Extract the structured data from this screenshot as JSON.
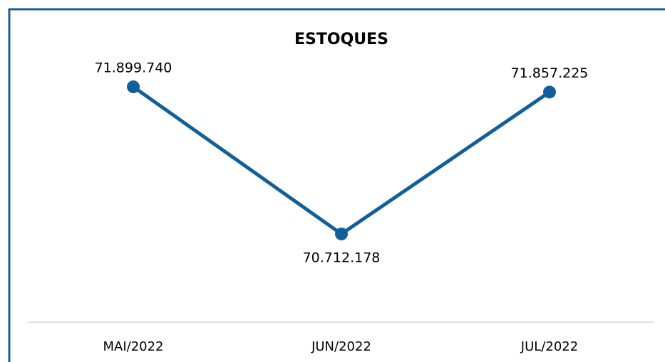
{
  "chart_data": {
    "type": "line",
    "title": "ESTOQUES",
    "categories": [
      "MAI/2022",
      "JUN/2022",
      "JUL/2022"
    ],
    "values": [
      71899740,
      70712178,
      71857225
    ],
    "value_labels": [
      "71.899.740",
      "70.712.178",
      "71.857.225"
    ],
    "color": "#11609b",
    "ylim": [
      70000000,
      72000000
    ]
  }
}
